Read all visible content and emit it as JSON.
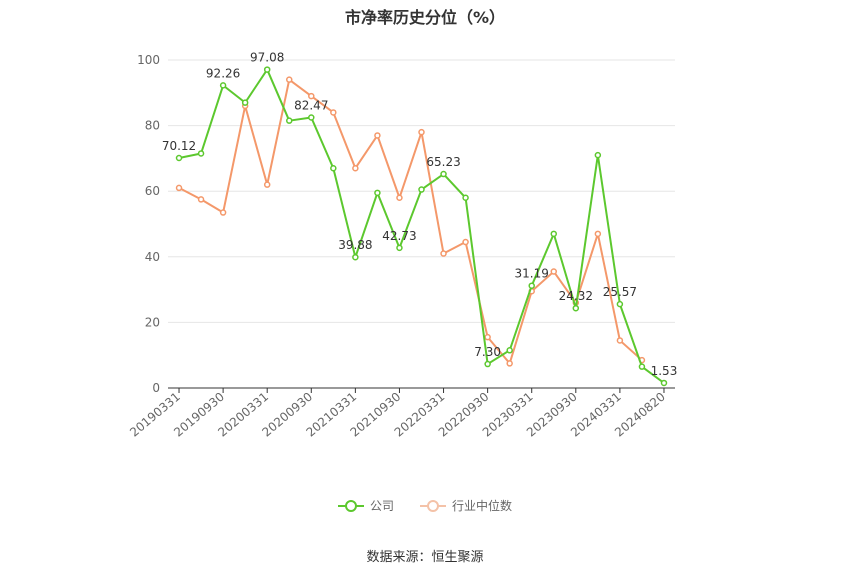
{
  "chart_data": {
    "type": "line",
    "title": "市净率历史分位（%）",
    "xlabel": "",
    "ylabel": "",
    "ylim": [
      0,
      100
    ],
    "yticks": [
      0,
      20,
      40,
      60,
      80,
      100
    ],
    "x": [
      "20190331",
      "20190630",
      "20190930",
      "20191231",
      "20200331",
      "20200630",
      "20200930",
      "20201231",
      "20210331",
      "20210630",
      "20210930",
      "20211231",
      "20220331",
      "20220630",
      "20220930",
      "20221231",
      "20230331",
      "20230630",
      "20230930",
      "20231231",
      "20240331",
      "20240630",
      "20240820"
    ],
    "xtick_labels": [
      "20190331",
      "20190930",
      "20200331",
      "20200930",
      "20210331",
      "20210930",
      "20220331",
      "20220930",
      "20230331",
      "20230930",
      "20240331",
      "20240820"
    ],
    "grid": true,
    "legend_position": "bottom",
    "series": [
      {
        "name": "公司",
        "color": "#5cc82e",
        "values": [
          70.12,
          71.5,
          92.26,
          87,
          97.08,
          81.5,
          82.47,
          67,
          39.88,
          59.5,
          42.73,
          60.5,
          65.23,
          58,
          7.3,
          11.5,
          31.19,
          47,
          24.32,
          71,
          25.57,
          6.5,
          1.53
        ],
        "labels": {
          "0": "70.12",
          "2": "92.26",
          "4": "97.08",
          "6": "82.47",
          "8": "39.88",
          "10": "42.73",
          "12": "65.23",
          "14": "7.30",
          "16": "31.19",
          "18": "24.32",
          "20": "25.57",
          "22": "1.53"
        }
      },
      {
        "name": "行业中位数",
        "color": "#f4986a",
        "values": [
          61,
          57.5,
          53.5,
          86,
          62,
          94,
          89,
          84,
          67,
          77,
          58,
          78,
          41,
          44.5,
          15.5,
          7.5,
          29.5,
          35.5,
          26,
          47,
          14.5,
          8.5,
          null
        ]
      }
    ]
  },
  "legend": {
    "company": "公司",
    "industry": "行业中位数"
  },
  "source": "数据来源：恒生聚源"
}
